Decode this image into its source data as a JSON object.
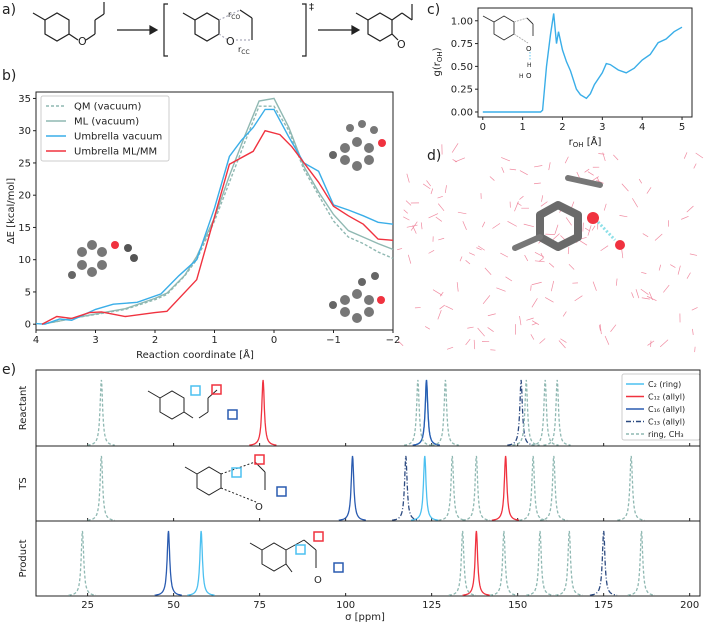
{
  "panel_labels": {
    "a": "a)",
    "b": "b)",
    "c": "c)",
    "d": "d)",
    "e": "e)"
  },
  "scheme": {
    "ts_symbol": "‡",
    "r_co": "r",
    "r_co_sub": "CO",
    "r_cc": "r",
    "r_cc_sub": "CC",
    "oxygen": "O"
  },
  "inset_c": {
    "o1": "O",
    "h1": "H",
    "o2": "O",
    "h2": "H"
  },
  "colors": {
    "qm": "#8fb8b2",
    "ml": "#8fb8b2",
    "umbrella_vacuum": "#3aaee8",
    "umbrella_mlmm": "#f0323f",
    "c2": "#4cc0f0",
    "c12": "#f0323f",
    "c16": "#2a5bb0",
    "c13": "#2c4a80",
    "ring": "#8fb8b2",
    "oxygen": "#f0323f",
    "water": "#f08aa0"
  },
  "chart_data": [
    {
      "id": "b",
      "type": "line",
      "xlabel": "Reaction coordinate [Å]",
      "ylabel": "ΔE [kcal/mol]",
      "xlim": [
        4,
        -2
      ],
      "ylim": [
        -0.9,
        36
      ],
      "xticks": [
        "4",
        "3",
        "2",
        "1",
        "0",
        "−1",
        "−2"
      ],
      "xtick_values": [
        4,
        3,
        2,
        1,
        0,
        -1,
        -2
      ],
      "yticks": [
        "0",
        "5",
        "10",
        "15",
        "20",
        "25",
        "30",
        "35"
      ],
      "ytick_values": [
        0,
        5,
        10,
        15,
        20,
        25,
        30,
        35
      ],
      "legend": "top-left",
      "series": [
        {
          "name": "QM (vacuum)",
          "style": "dashed",
          "color_key": "qm",
          "x": [
            3.9,
            3.6,
            3.4,
            3.0,
            2.5,
            2.0,
            1.8,
            1.5,
            1.3,
            1.0,
            0.75,
            0.5,
            0.25,
            0.0,
            -0.25,
            -0.5,
            -0.75,
            -1.0,
            -1.25,
            -1.5,
            -1.75,
            -2.0
          ],
          "y": [
            0,
            0.5,
            0.9,
            1.5,
            2.3,
            3.8,
            4.6,
            7.5,
            10,
            16,
            22,
            28,
            33.8,
            33.8,
            30,
            24,
            20,
            16,
            13.5,
            12.5,
            11.2,
            10.2
          ]
        },
        {
          "name": "ML (vacuum)",
          "style": "solid",
          "color_key": "ml",
          "x": [
            3.9,
            3.6,
            3.4,
            3.0,
            2.5,
            2.0,
            1.8,
            1.5,
            1.3,
            1.0,
            0.75,
            0.5,
            0.25,
            0.0,
            -0.25,
            -0.5,
            -0.75,
            -1.0,
            -1.25,
            -1.5,
            -1.75,
            -2.0
          ],
          "y": [
            0,
            0.5,
            0.9,
            1.6,
            2.4,
            4.0,
            4.8,
            7.6,
            10.5,
            16.5,
            23,
            29,
            34.6,
            35,
            30.5,
            24.5,
            20.5,
            17,
            14.5,
            13.5,
            12.5,
            11.6
          ]
        },
        {
          "name": "Umbrella vacuum",
          "style": "solid",
          "color_key": "umbrella_vacuum",
          "x": [
            4.0,
            3.85,
            3.6,
            3.4,
            3.0,
            2.7,
            2.3,
            1.9,
            1.6,
            1.3,
            1.0,
            0.75,
            0.55,
            0.35,
            0.15,
            0.0,
            -0.25,
            -0.5,
            -0.75,
            -1.0,
            -1.25,
            -1.5,
            -1.75,
            -2.0
          ],
          "y": [
            0.1,
            0,
            0.8,
            0.6,
            2.3,
            3.1,
            3.4,
            4.7,
            7.5,
            10,
            18,
            26,
            28.5,
            30.5,
            33.3,
            33.3,
            29,
            25,
            23.7,
            18.5,
            17.7,
            16.8,
            15.8,
            15.5
          ]
        },
        {
          "name": "Umbrella ML/MM",
          "style": "solid",
          "color_key": "umbrella_mlmm",
          "x": [
            3.9,
            3.65,
            3.4,
            3.1,
            2.9,
            2.5,
            2.0,
            1.8,
            1.3,
            0.75,
            0.35,
            0.15,
            -0.1,
            -0.3,
            -0.75,
            -1.0,
            -1.25,
            -1.5,
            -1.75,
            -2.0
          ],
          "y": [
            0,
            1.2,
            0.9,
            1.8,
            1.9,
            1.2,
            1.8,
            2.0,
            6.9,
            24.8,
            26.8,
            30,
            29.4,
            27.5,
            22,
            18.3,
            16.8,
            15.5,
            13.2,
            13
          ]
        }
      ]
    },
    {
      "id": "c",
      "type": "line",
      "xlabel": "r",
      "xlabel_sub": "OH",
      "xlabel_unit": " [Å]",
      "ylabel": "g(r",
      "ylabel_sub": "OH",
      "ylabel_end": ")",
      "xlim": [
        -0.12,
        5.25
      ],
      "ylim": [
        -0.055,
        1.14
      ],
      "xticks": [
        "0",
        "1",
        "2",
        "3",
        "4",
        "5"
      ],
      "xtick_values": [
        0,
        1,
        2,
        3,
        4,
        5
      ],
      "yticks": [
        "0.00",
        "0.25",
        "0.50",
        "0.75",
        "1.00"
      ],
      "ytick_values": [
        0,
        0.25,
        0.5,
        0.75,
        1.0
      ],
      "series": [
        {
          "style": "solid",
          "color_key": "umbrella_vacuum",
          "x": [
            0,
            1.45,
            1.5,
            1.6,
            1.7,
            1.78,
            1.85,
            1.9,
            2.0,
            2.1,
            2.2,
            2.35,
            2.45,
            2.6,
            2.7,
            2.8,
            3.0,
            3.1,
            3.2,
            3.4,
            3.6,
            3.8,
            4.0,
            4.2,
            4.4,
            4.6,
            4.8,
            5.0
          ],
          "y": [
            0,
            0,
            0.02,
            0.5,
            0.85,
            1.08,
            0.75,
            0.88,
            0.68,
            0.55,
            0.45,
            0.25,
            0.19,
            0.15,
            0.2,
            0.3,
            0.43,
            0.53,
            0.52,
            0.46,
            0.43,
            0.48,
            0.57,
            0.63,
            0.76,
            0.8,
            0.88,
            0.93
          ]
        }
      ]
    },
    {
      "id": "e",
      "type": "line",
      "xlabel": "σ [ppm]",
      "xlim": [
        10,
        203
      ],
      "xticks": [
        "25",
        "50",
        "75",
        "100",
        "125",
        "150",
        "175",
        "200"
      ],
      "xtick_values": [
        25,
        50,
        75,
        100,
        125,
        150,
        175,
        200
      ],
      "rows": [
        "Reactant",
        "TS",
        "Product"
      ],
      "legend": "top-right",
      "series": [
        {
          "name": "C₂ (ring)",
          "style": "solid",
          "color_key": "c2",
          "peaks": [
            123.5,
            123,
            58
          ]
        },
        {
          "name": "C₁₂ (allyl)",
          "style": "solid",
          "color_key": "c12",
          "peaks": [
            76,
            146.5,
            138
          ]
        },
        {
          "name": "C₁₆ (allyl)",
          "style": "solid",
          "color_key": "c16",
          "peaks": [
            123.5,
            102,
            48.5
          ]
        },
        {
          "name": "C₁₃ (allyl)",
          "style": "dashdot",
          "color_key": "c13",
          "peaks": [
            151,
            117.5,
            175
          ]
        },
        {
          "name": "ring, CH₃",
          "style": "dashed",
          "color_key": "ring",
          "peaks": [
            [
              29,
              121,
              129,
              152.5,
              158,
              161.5
            ],
            [
              29,
              131,
              138,
              154.5,
              160.5,
              183
            ],
            [
              23.5,
              134,
              146,
              156.5,
              165,
              186
            ]
          ]
        }
      ]
    }
  ]
}
